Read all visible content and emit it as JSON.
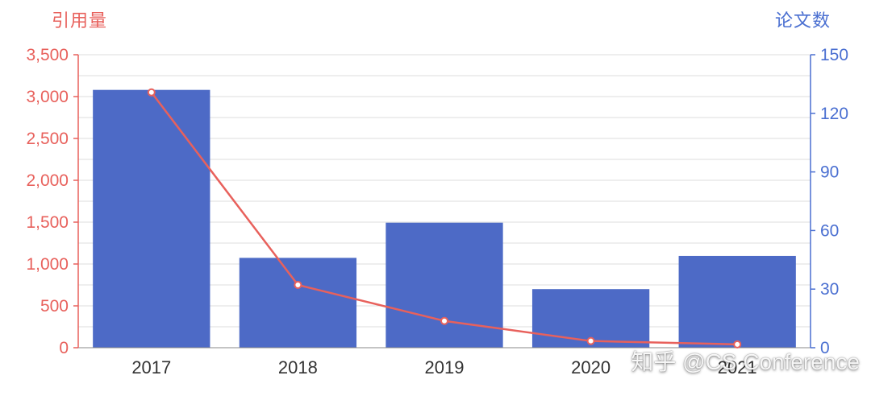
{
  "watermark": "知乎 @CS Conference",
  "chart_data": {
    "type": "bar+line",
    "title": "",
    "categories": [
      "2017",
      "2018",
      "2019",
      "2020",
      "2021"
    ],
    "series": [
      {
        "name": "论文数",
        "type": "bar",
        "axis": "right",
        "values": [
          132,
          46,
          64,
          30,
          47
        ],
        "color": "#4d6ac6"
      },
      {
        "name": "引用量",
        "type": "line",
        "axis": "left",
        "values": [
          3050,
          750,
          320,
          80,
          40
        ],
        "color": "#e8615c",
        "marker_fill": "#ffffff"
      }
    ],
    "left_axis": {
      "title": "引用量",
      "min": 0,
      "max": 3500,
      "tick_step": 500,
      "minor_step": 250,
      "color": "#e8615c",
      "tick_labels": [
        "0",
        "500",
        "1,000",
        "1,500",
        "2,000",
        "2,500",
        "3,000",
        "3,500"
      ]
    },
    "right_axis": {
      "title": "论文数",
      "min": 0,
      "max": 150,
      "tick_step": 30,
      "color": "#4a6fd1",
      "tick_labels": [
        "0",
        "30",
        "60",
        "90",
        "120",
        "150"
      ]
    },
    "x_axis": {
      "color": "#888888",
      "label_color": "#333333"
    },
    "grid": {
      "on": true,
      "color": "#dcdcdc"
    },
    "legend_position": "none",
    "background": "#ffffff"
  }
}
